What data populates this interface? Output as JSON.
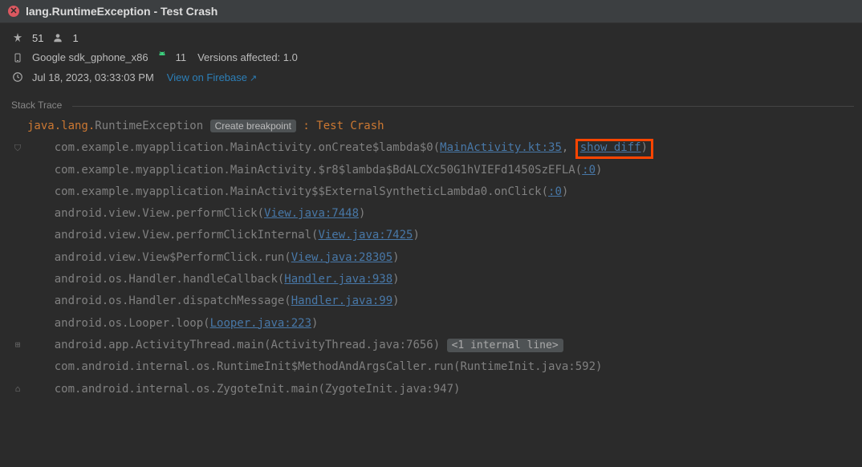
{
  "title": "lang.RuntimeException - Test Crash",
  "meta": {
    "crash_count": "51",
    "user_count": "1",
    "device": "Google sdk_gphone_x86",
    "android_version": "11",
    "versions_label": "Versions affected: 1.0",
    "timestamp": "Jul 18, 2023, 03:33:03 PM",
    "firebase_link": "View on Firebase"
  },
  "section_label": "Stack Trace",
  "exception": {
    "pkg": "java.lang.",
    "name": "RuntimeException",
    "breakpoint_label": "Create breakpoint",
    "message": "Test Crash"
  },
  "show_diff_label": "show diff",
  "internal_line_label": "<1 internal line>",
  "frames": [
    {
      "gutter": "shield",
      "text_pre": "com.example.myapplication.MainActivity.onCreate$lambda$0(",
      "file": "MainActivity.kt:35",
      "text_post": ", ",
      "show_diff": true,
      "tail": ")"
    },
    {
      "gutter": "",
      "text_pre": "com.example.myapplication.MainActivity.$r8$lambda$BdALCXc50G1hVIEFd1450SzEFLA(",
      "file": ":0",
      "tail": ")"
    },
    {
      "gutter": "",
      "text_pre": "com.example.myapplication.MainActivity$$ExternalSyntheticLambda0.onClick(",
      "file": ":0",
      "tail": ")"
    },
    {
      "gutter": "",
      "text_pre": "android.view.View.performClick(",
      "file": "View.java:7448",
      "tail": ")"
    },
    {
      "gutter": "",
      "text_pre": "android.view.View.performClickInternal(",
      "file": "View.java:7425",
      "tail": ")"
    },
    {
      "gutter": "",
      "text_pre": "android.view.View$PerformClick.run(",
      "file": "View.java:28305",
      "tail": ")"
    },
    {
      "gutter": "",
      "text_pre": "android.os.Handler.handleCallback(",
      "file": "Handler.java:938",
      "tail": ")"
    },
    {
      "gutter": "",
      "text_pre": "android.os.Handler.dispatchMessage(",
      "file": "Handler.java:99",
      "tail": ")"
    },
    {
      "gutter": "",
      "text_pre": "android.os.Looper.loop(",
      "file": "Looper.java:223",
      "tail": ")"
    },
    {
      "gutter": "plus",
      "text_pre": "android.app.ActivityThread.main(ActivityThread.java:7656) ",
      "internal": true
    },
    {
      "gutter": "",
      "text_pre": "com.android.internal.os.RuntimeInit$MethodAndArgsCaller.run(RuntimeInit.java:592)"
    },
    {
      "gutter": "home",
      "text_pre": "com.android.internal.os.ZygoteInit.main(ZygoteInit.java:947)"
    }
  ]
}
